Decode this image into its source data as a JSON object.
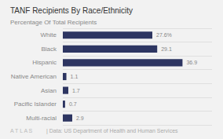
{
  "chart_data": {
    "type": "bar",
    "orientation": "horizontal",
    "title": "TANF Recipients By Race/Ethnicity",
    "subtitle": "Percentage Of Total Recipients",
    "annotations": [
      "A T L A S",
      "| Data: US Department of Health and Human Services"
    ],
    "categories": [
      "White",
      "Black",
      "Hispanic",
      "Native American",
      "Asian",
      "Pacific Islander",
      "Multi-racial"
    ],
    "values": [
      27.6,
      29.1,
      36.9,
      1.1,
      1.7,
      0.7,
      2.9
    ],
    "value_labels": [
      "27.6%",
      "29.1",
      "36.9",
      "1.1",
      "1.7",
      "0.7",
      "2.9"
    ],
    "data_labels": true,
    "color": "#2d3561",
    "xlim": [
      0,
      46
    ],
    "tick_labels": "y",
    "grid": true
  }
}
